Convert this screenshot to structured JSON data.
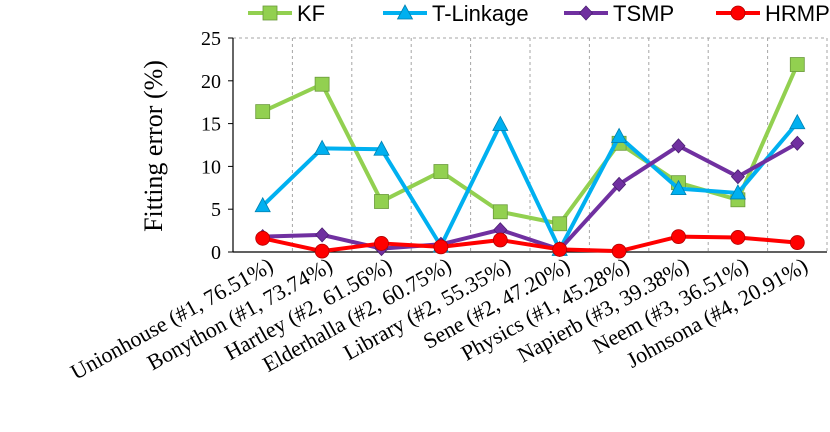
{
  "chart_data": {
    "type": "line",
    "ylabel": "Fitting error (%)",
    "xlabel": "",
    "ylim": [
      0,
      25
    ],
    "yticks": [
      0,
      5,
      10,
      15,
      20,
      25
    ],
    "grid": "vertical dashed lines at each category",
    "legend_position": "top",
    "categories": [
      "Unionhouse (#1, 76.51%)",
      "Bonython (#1, 73.74%)",
      "Hartley (#2, 61.56%)",
      "Elderhalla (#2, 60.75%)",
      "Library (#2, 55.35%)",
      "Sene (#2, 47.20%)",
      "Physics (#1, 45.28%)",
      "Napierb (#3, 39.38%)",
      "Neem (#3, 36.51%)",
      "Johnsona (#4, 20.91%)"
    ],
    "series": [
      {
        "name": "KF",
        "color": "#92d050",
        "marker": "square",
        "values": [
          16.4,
          19.6,
          5.9,
          9.4,
          4.7,
          3.3,
          12.7,
          8.1,
          6.1,
          21.9
        ]
      },
      {
        "name": "T-Linkage",
        "color": "#00b0f0",
        "marker": "triangle",
        "values": [
          5.4,
          12.1,
          12.0,
          0.7,
          14.9,
          0.3,
          13.5,
          7.4,
          6.9,
          15.1
        ]
      },
      {
        "name": "TSMP",
        "color": "#7030a0",
        "marker": "diamond",
        "values": [
          1.8,
          2.0,
          0.4,
          0.9,
          2.6,
          0.3,
          7.9,
          12.4,
          8.8,
          12.7
        ]
      },
      {
        "name": "HRMP",
        "color": "#ff0000",
        "marker": "circle",
        "values": [
          1.6,
          0.1,
          1.0,
          0.6,
          1.4,
          0.3,
          0.1,
          1.8,
          1.7,
          1.1
        ]
      }
    ]
  }
}
